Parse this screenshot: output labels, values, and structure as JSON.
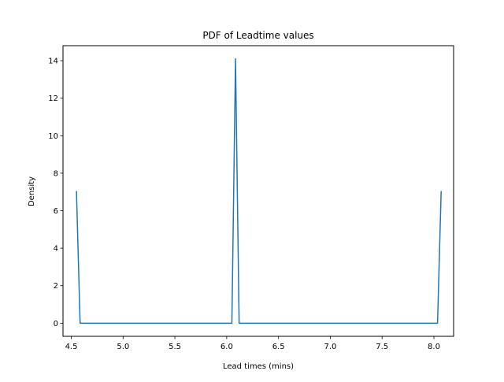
{
  "chart_data": {
    "type": "line",
    "title": "PDF of Leadtime values",
    "xlabel": "Lead times (mins)",
    "ylabel": "Density",
    "xlim": [
      4.42,
      8.19
    ],
    "ylim": [
      -0.7,
      14.8
    ],
    "xticks": [
      4.5,
      5.0,
      5.5,
      6.0,
      6.5,
      7.0,
      7.5,
      8.0
    ],
    "xtick_labels": [
      "4.5",
      "5.0",
      "5.5",
      "6.0",
      "6.5",
      "7.0",
      "7.5",
      "8.0"
    ],
    "yticks": [
      0,
      2,
      4,
      6,
      8,
      10,
      12,
      14
    ],
    "ytick_labels": [
      "0",
      "2",
      "4",
      "6",
      "8",
      "10",
      "12",
      "14"
    ],
    "grid": false,
    "legend": "none",
    "series": [
      {
        "color": "#1f77b4",
        "x": [
          4.55,
          4.585,
          6.05,
          6.085,
          6.12,
          8.035,
          8.07
        ],
        "y": [
          7.05,
          0.0,
          0.0,
          14.1,
          0.0,
          0.0,
          7.05
        ]
      }
    ]
  }
}
